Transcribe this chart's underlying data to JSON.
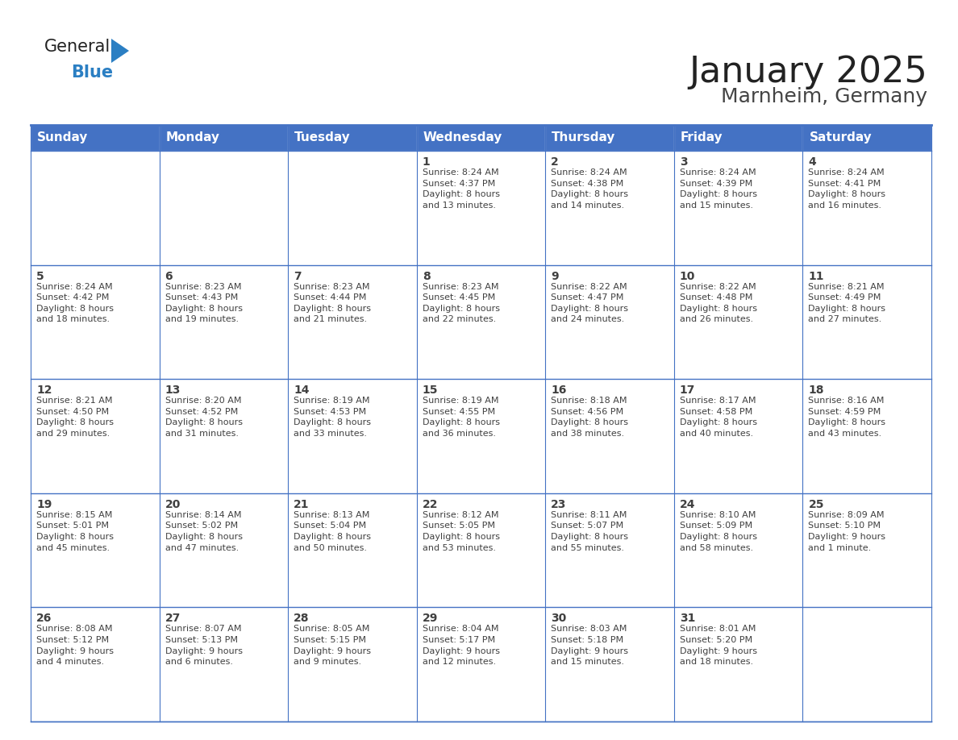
{
  "title": "January 2025",
  "subtitle": "Marnheim, Germany",
  "header_bg": "#4472C4",
  "header_text_color": "#FFFFFF",
  "cell_bg": "#FFFFFF",
  "border_color": "#4472C4",
  "row_divider_color": "#4472C4",
  "text_color": "#404040",
  "days_of_week": [
    "Sunday",
    "Monday",
    "Tuesday",
    "Wednesday",
    "Thursday",
    "Friday",
    "Saturday"
  ],
  "weeks": [
    [
      {
        "day": "",
        "info": ""
      },
      {
        "day": "",
        "info": ""
      },
      {
        "day": "",
        "info": ""
      },
      {
        "day": "1",
        "info": "Sunrise: 8:24 AM\nSunset: 4:37 PM\nDaylight: 8 hours\nand 13 minutes."
      },
      {
        "day": "2",
        "info": "Sunrise: 8:24 AM\nSunset: 4:38 PM\nDaylight: 8 hours\nand 14 minutes."
      },
      {
        "day": "3",
        "info": "Sunrise: 8:24 AM\nSunset: 4:39 PM\nDaylight: 8 hours\nand 15 minutes."
      },
      {
        "day": "4",
        "info": "Sunrise: 8:24 AM\nSunset: 4:41 PM\nDaylight: 8 hours\nand 16 minutes."
      }
    ],
    [
      {
        "day": "5",
        "info": "Sunrise: 8:24 AM\nSunset: 4:42 PM\nDaylight: 8 hours\nand 18 minutes."
      },
      {
        "day": "6",
        "info": "Sunrise: 8:23 AM\nSunset: 4:43 PM\nDaylight: 8 hours\nand 19 minutes."
      },
      {
        "day": "7",
        "info": "Sunrise: 8:23 AM\nSunset: 4:44 PM\nDaylight: 8 hours\nand 21 minutes."
      },
      {
        "day": "8",
        "info": "Sunrise: 8:23 AM\nSunset: 4:45 PM\nDaylight: 8 hours\nand 22 minutes."
      },
      {
        "day": "9",
        "info": "Sunrise: 8:22 AM\nSunset: 4:47 PM\nDaylight: 8 hours\nand 24 minutes."
      },
      {
        "day": "10",
        "info": "Sunrise: 8:22 AM\nSunset: 4:48 PM\nDaylight: 8 hours\nand 26 minutes."
      },
      {
        "day": "11",
        "info": "Sunrise: 8:21 AM\nSunset: 4:49 PM\nDaylight: 8 hours\nand 27 minutes."
      }
    ],
    [
      {
        "day": "12",
        "info": "Sunrise: 8:21 AM\nSunset: 4:50 PM\nDaylight: 8 hours\nand 29 minutes."
      },
      {
        "day": "13",
        "info": "Sunrise: 8:20 AM\nSunset: 4:52 PM\nDaylight: 8 hours\nand 31 minutes."
      },
      {
        "day": "14",
        "info": "Sunrise: 8:19 AM\nSunset: 4:53 PM\nDaylight: 8 hours\nand 33 minutes."
      },
      {
        "day": "15",
        "info": "Sunrise: 8:19 AM\nSunset: 4:55 PM\nDaylight: 8 hours\nand 36 minutes."
      },
      {
        "day": "16",
        "info": "Sunrise: 8:18 AM\nSunset: 4:56 PM\nDaylight: 8 hours\nand 38 minutes."
      },
      {
        "day": "17",
        "info": "Sunrise: 8:17 AM\nSunset: 4:58 PM\nDaylight: 8 hours\nand 40 minutes."
      },
      {
        "day": "18",
        "info": "Sunrise: 8:16 AM\nSunset: 4:59 PM\nDaylight: 8 hours\nand 43 minutes."
      }
    ],
    [
      {
        "day": "19",
        "info": "Sunrise: 8:15 AM\nSunset: 5:01 PM\nDaylight: 8 hours\nand 45 minutes."
      },
      {
        "day": "20",
        "info": "Sunrise: 8:14 AM\nSunset: 5:02 PM\nDaylight: 8 hours\nand 47 minutes."
      },
      {
        "day": "21",
        "info": "Sunrise: 8:13 AM\nSunset: 5:04 PM\nDaylight: 8 hours\nand 50 minutes."
      },
      {
        "day": "22",
        "info": "Sunrise: 8:12 AM\nSunset: 5:05 PM\nDaylight: 8 hours\nand 53 minutes."
      },
      {
        "day": "23",
        "info": "Sunrise: 8:11 AM\nSunset: 5:07 PM\nDaylight: 8 hours\nand 55 minutes."
      },
      {
        "day": "24",
        "info": "Sunrise: 8:10 AM\nSunset: 5:09 PM\nDaylight: 8 hours\nand 58 minutes."
      },
      {
        "day": "25",
        "info": "Sunrise: 8:09 AM\nSunset: 5:10 PM\nDaylight: 9 hours\nand 1 minute."
      }
    ],
    [
      {
        "day": "26",
        "info": "Sunrise: 8:08 AM\nSunset: 5:12 PM\nDaylight: 9 hours\nand 4 minutes."
      },
      {
        "day": "27",
        "info": "Sunrise: 8:07 AM\nSunset: 5:13 PM\nDaylight: 9 hours\nand 6 minutes."
      },
      {
        "day": "28",
        "info": "Sunrise: 8:05 AM\nSunset: 5:15 PM\nDaylight: 9 hours\nand 9 minutes."
      },
      {
        "day": "29",
        "info": "Sunrise: 8:04 AM\nSunset: 5:17 PM\nDaylight: 9 hours\nand 12 minutes."
      },
      {
        "day": "30",
        "info": "Sunrise: 8:03 AM\nSunset: 5:18 PM\nDaylight: 9 hours\nand 15 minutes."
      },
      {
        "day": "31",
        "info": "Sunrise: 8:01 AM\nSunset: 5:20 PM\nDaylight: 9 hours\nand 18 minutes."
      },
      {
        "day": "",
        "info": ""
      }
    ]
  ],
  "logo_text1": "General",
  "logo_text2": "Blue",
  "logo_color1": "#222222",
  "logo_color2": "#2B7FC3",
  "logo_triangle_color": "#2B7FC3",
  "title_fontsize": 32,
  "subtitle_fontsize": 18,
  "header_fontsize": 11,
  "day_num_fontsize": 10,
  "info_fontsize": 8
}
